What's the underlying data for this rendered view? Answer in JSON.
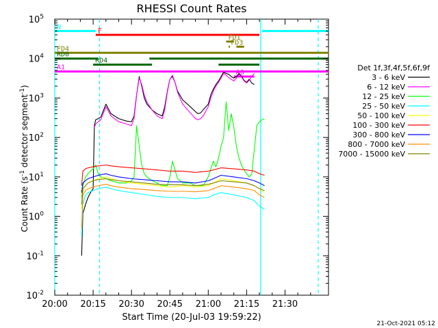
{
  "chart_data": {
    "type": "line",
    "title": "RHESSI Count Rates",
    "xlabel": "Start Time (20-Jul-03 19:59:22)",
    "ylabel_prefix": "Count Rate (s",
    "ylabel_sup1": "-1",
    "ylabel_mid": " detector segment",
    "ylabel_sup2": "-1",
    "ylabel_suffix": ")",
    "yscale": "log",
    "ylim": [
      0.01,
      100000
    ],
    "xlim_minutes": [
      0,
      107
    ],
    "x_ticks": [
      {
        "t": 0,
        "label": "20:00"
      },
      {
        "t": 15,
        "label": "20:15"
      },
      {
        "t": 30,
        "label": "20:30"
      },
      {
        "t": 45,
        "label": "20:45"
      },
      {
        "t": 60,
        "label": "21:00"
      },
      {
        "t": 75,
        "label": "21:15"
      },
      {
        "t": 90,
        "label": "21:30"
      }
    ],
    "y_ticks": [
      {
        "v": 0.01,
        "base": "10",
        "exp": "-2"
      },
      {
        "v": 0.1,
        "base": "10",
        "exp": "-1"
      },
      {
        "v": 1,
        "base": "10",
        "exp": "0"
      },
      {
        "v": 10,
        "base": "10",
        "exp": "1"
      },
      {
        "v": 100,
        "base": "10",
        "exp": "2"
      },
      {
        "v": 1000,
        "base": "10",
        "exp": "3"
      },
      {
        "v": 10000,
        "base": "10",
        "exp": "4"
      },
      {
        "v": 100000,
        "base": "10",
        "exp": "5"
      }
    ],
    "legend_title": "Det 1f,3f,4f,5f,6f,9f",
    "legend_position": "right",
    "series": [
      {
        "name": "3 - 6 keV",
        "color": "#000000",
        "x": [
          10.5,
          11,
          11.5,
          12,
          13,
          14,
          15,
          15.5,
          16,
          17,
          18,
          20,
          22,
          25,
          28,
          30,
          31,
          32,
          33,
          34,
          35,
          36,
          38,
          40,
          42,
          43,
          44,
          45,
          46,
          47,
          48,
          50,
          53,
          55,
          56,
          57,
          58,
          60,
          61,
          62,
          63,
          64,
          65,
          66,
          67,
          68,
          69,
          70,
          71,
          72,
          73,
          74,
          75,
          76,
          77,
          78
        ],
        "y": [
          0.1,
          1.2,
          1.5,
          2,
          3,
          4,
          5,
          200,
          280,
          300,
          330,
          700,
          400,
          300,
          260,
          250,
          350,
          1200,
          3500,
          2000,
          1000,
          700,
          500,
          400,
          350,
          600,
          1500,
          3000,
          3500,
          2500,
          1500,
          900,
          600,
          450,
          400,
          420,
          500,
          700,
          1200,
          1700,
          2200,
          2700,
          3500,
          4500,
          4200,
          4000,
          3500,
          3200,
          3500,
          4200,
          3600,
          2800,
          2500,
          3000,
          2400,
          2200
        ]
      },
      {
        "name": "6 - 12 keV",
        "color": "#ff00ff",
        "x": [
          15.5,
          16,
          17,
          18,
          20,
          22,
          25,
          28,
          30,
          31,
          32,
          33,
          34,
          35,
          36,
          38,
          40,
          42,
          43,
          44,
          45,
          46,
          47,
          48,
          50,
          53,
          55,
          56,
          57,
          58,
          60,
          61,
          62,
          63,
          64,
          65,
          66,
          67,
          68,
          69,
          70,
          71,
          72,
          73,
          74,
          75,
          76,
          77,
          78
        ],
        "y": [
          180,
          220,
          250,
          280,
          600,
          350,
          250,
          220,
          200,
          300,
          1200,
          3200,
          2200,
          1200,
          800,
          500,
          350,
          300,
          500,
          1400,
          3000,
          3800,
          2500,
          1400,
          700,
          420,
          300,
          280,
          300,
          350,
          600,
          1000,
          1500,
          2000,
          2500,
          3200,
          4200,
          3800,
          3300,
          3000,
          2700,
          3200,
          4000,
          3400,
          2700,
          2400,
          2800,
          3500,
          4200
        ]
      },
      {
        "name": "12 - 25 keV",
        "color": "#00ff00",
        "x": [
          10.5,
          11,
          12,
          13,
          14,
          15,
          16,
          17,
          18,
          20,
          22,
          25,
          28,
          30,
          31,
          32,
          33,
          34,
          35,
          36,
          38,
          40,
          42,
          43,
          44,
          45,
          46,
          47,
          48,
          50,
          53,
          55,
          56,
          57,
          58,
          60,
          61,
          62,
          63,
          64,
          65,
          66,
          67,
          68,
          69,
          70,
          71,
          72,
          73,
          74,
          75,
          76,
          77,
          78,
          79,
          80,
          81,
          82
        ],
        "y": [
          3,
          6,
          10,
          12,
          14,
          16,
          20,
          12,
          10,
          9,
          8,
          7,
          7,
          8,
          10,
          200,
          60,
          20,
          12,
          10,
          8,
          7,
          6,
          6,
          6,
          10,
          25,
          15,
          9,
          7,
          7,
          6,
          6,
          6,
          6,
          10,
          16,
          25,
          18,
          30,
          60,
          100,
          800,
          150,
          400,
          180,
          60,
          30,
          20,
          15,
          12,
          10,
          12,
          50,
          200,
          250,
          280,
          300
        ]
      },
      {
        "name": "25 - 50 keV",
        "color": "#00ffff",
        "x": [
          10.5,
          11,
          12,
          13,
          15,
          17,
          20,
          22,
          25,
          30,
          35,
          40,
          45,
          50,
          55,
          60,
          62,
          65,
          70,
          75,
          78,
          80,
          82
        ],
        "y": [
          0.3,
          2,
          3.5,
          4,
          4.5,
          5,
          5.5,
          5,
          4.5,
          4,
          3.6,
          3.2,
          3,
          3,
          2.8,
          3,
          3.5,
          4,
          3.5,
          3,
          2.5,
          1.8,
          1.5
        ]
      },
      {
        "name": "50 - 100 keV",
        "color": "#ffff00",
        "x": [
          10.5,
          11,
          12,
          13,
          15,
          17,
          20,
          22,
          25,
          30,
          35,
          40,
          45,
          50,
          55,
          60,
          62,
          65,
          70,
          75,
          78,
          80,
          82
        ],
        "y": [
          1.5,
          4,
          6,
          7,
          8,
          9,
          10,
          9,
          8,
          7,
          6.5,
          6,
          5.5,
          6,
          5.5,
          6,
          7,
          9,
          8,
          7,
          6,
          5,
          4
        ]
      },
      {
        "name": "100 - 300 keV",
        "color": "#ff0000",
        "x": [
          10.5,
          11,
          12,
          13,
          15,
          17,
          20,
          22,
          25,
          30,
          35,
          40,
          45,
          50,
          55,
          60,
          62,
          65,
          70,
          75,
          78,
          80,
          82
        ],
        "y": [
          6,
          14,
          16,
          17,
          18,
          19,
          20,
          19,
          18,
          17,
          16,
          15,
          14,
          14,
          13,
          14,
          15,
          17,
          16,
          15,
          14,
          12,
          11
        ]
      },
      {
        "name": "300 - 800 keV",
        "color": "#0000ff",
        "x": [
          10.5,
          11,
          12,
          13,
          15,
          17,
          20,
          22,
          25,
          30,
          35,
          40,
          45,
          50,
          55,
          60,
          62,
          65,
          70,
          75,
          78,
          80,
          82
        ],
        "y": [
          4,
          7,
          8,
          9,
          10,
          11,
          12,
          11,
          10,
          9,
          8.5,
          8,
          7.5,
          7.5,
          7,
          8,
          9,
          11,
          10,
          9,
          8,
          7,
          6
        ]
      },
      {
        "name": "800 - 7000 keV",
        "color": "#ff8c00",
        "x": [
          10.5,
          11,
          12,
          13,
          15,
          17,
          20,
          22,
          25,
          30,
          35,
          40,
          45,
          50,
          55,
          60,
          62,
          65,
          70,
          75,
          78,
          80,
          82
        ],
        "y": [
          0.5,
          3.5,
          4.5,
          5,
          5.5,
          6,
          6.5,
          6,
          5.5,
          5,
          4.8,
          4.5,
          4.3,
          4.3,
          4.2,
          4.5,
          5,
          6,
          5.5,
          5,
          4.5,
          3.5,
          3
        ]
      },
      {
        "name": "7000 - 15000 keV",
        "color": "#808000",
        "x": [
          10.5,
          11,
          12,
          13,
          15,
          17,
          20,
          22,
          25,
          30,
          35,
          40,
          45,
          50,
          55,
          60,
          62,
          65,
          70,
          75,
          78,
          80,
          82
        ],
        "y": [
          2,
          5,
          6,
          7,
          8,
          8.5,
          9,
          8.5,
          8,
          7.5,
          7,
          6.5,
          6.3,
          6.3,
          6,
          6.5,
          7,
          8,
          7.5,
          7,
          6,
          5,
          4.5
        ]
      }
    ],
    "flag_bars": [
      {
        "label": "F",
        "color": "#ff0000",
        "y": 40000,
        "x0": 16,
        "x1": 80
      },
      {
        "label": "N",
        "color": "#00ffff",
        "y": 50000,
        "x0": 0,
        "x1": 16
      },
      {
        "label": "",
        "color": "#00ffff",
        "y": 50000,
        "x0": 81,
        "x1": 107
      },
      {
        "label": "FD1",
        "color": "#808000",
        "y": 27000,
        "x0": 67,
        "x1": 70
      },
      {
        "label": "FD3",
        "color": "#808000",
        "y": 20000,
        "x0": 68,
        "x1": 68.5
      },
      {
        "label": "",
        "color": "#808000",
        "y": 20000,
        "x0": 71,
        "x1": 74
      },
      {
        "label": "FD4",
        "color": "#808000",
        "y": 14000,
        "x0": 0,
        "x1": 107
      },
      {
        "label": "RD0",
        "color": "#006400",
        "y": 10000,
        "x0": 0,
        "x1": 17
      },
      {
        "label": "",
        "color": "#006400",
        "y": 10000,
        "x0": 37,
        "x1": 107
      },
      {
        "label": "RD4",
        "color": "#006400",
        "y": 7000,
        "x0": 15,
        "x1": 38
      },
      {
        "label": "",
        "color": "#006400",
        "y": 7000,
        "x0": 64,
        "x1": 80
      },
      {
        "label": "A1",
        "color": "#ff00ff",
        "y": 4700,
        "x0": 0,
        "x1": 107
      },
      {
        "label": "A0",
        "color": "#ff00ff",
        "y": 3500,
        "x0": 70,
        "x1": 78
      }
    ],
    "vertical_lines": [
      {
        "t": 0,
        "color": "#00ffff",
        "style": "solid"
      },
      {
        "t": 17.5,
        "color": "#00ffff",
        "style": "dashed"
      },
      {
        "t": 80.5,
        "color": "#00ffff",
        "style": "solid"
      },
      {
        "t": 103,
        "color": "#00ffff",
        "style": "dashed"
      }
    ],
    "footer_timestamp": "21-Oct-2021 05:12"
  }
}
